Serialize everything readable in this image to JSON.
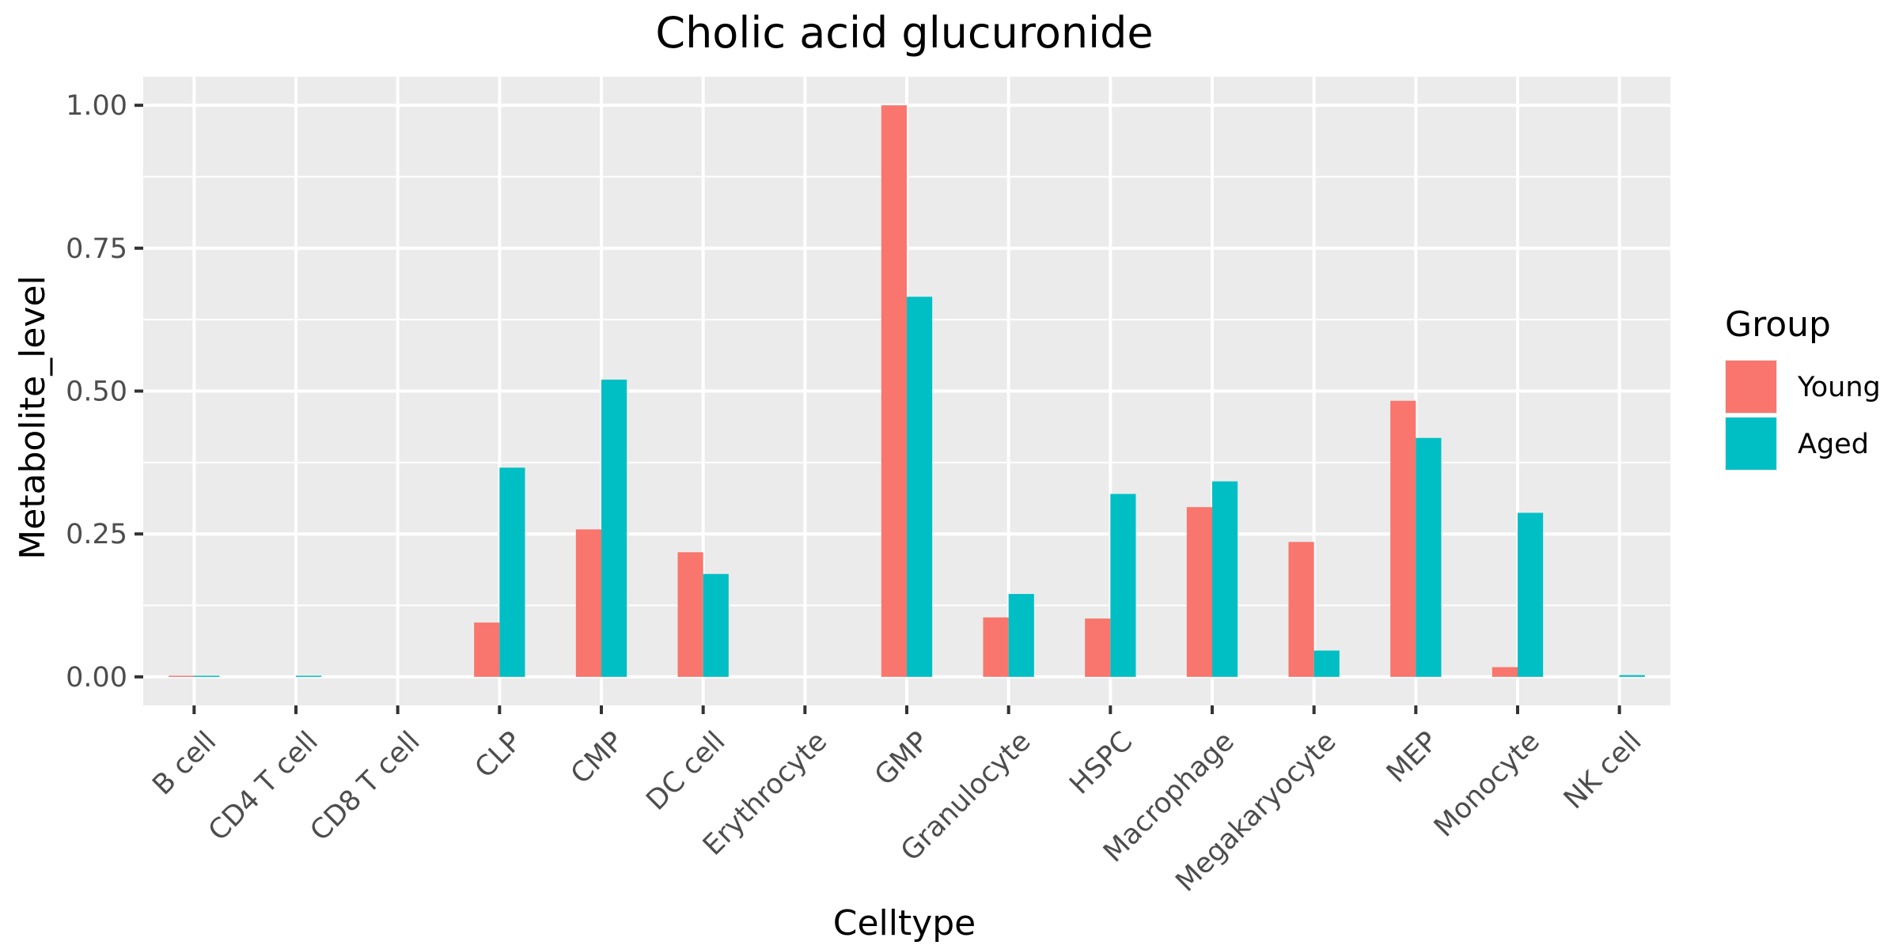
{
  "chart_data": {
    "type": "bar",
    "title": "Cholic acid glucuronide",
    "xlabel": "Celltype",
    "ylabel": "Metabolite_level",
    "categories": [
      "B cell",
      "CD4 T cell",
      "CD8 T cell",
      "CLP",
      "CMP",
      "DC cell",
      "Erythrocyte",
      "GMP",
      "Granulocyte",
      "HSPC",
      "Macrophage",
      "Megakaryocyte",
      "MEP",
      "Monocyte",
      "NK cell"
    ],
    "series": [
      {
        "name": "Young",
        "color": "#F8766D",
        "values": [
          0.002,
          0,
          0,
          0.095,
          0.258,
          0.218,
          0,
          1.0,
          0.104,
          0.102,
          0.297,
          0.236,
          0.483,
          0.017,
          0
        ]
      },
      {
        "name": "Aged",
        "color": "#00BFC4",
        "values": [
          0.002,
          0.002,
          0,
          0.366,
          0.52,
          0.18,
          0,
          0.665,
          0.145,
          0.32,
          0.342,
          0.046,
          0.418,
          0.287,
          0.003
        ]
      }
    ],
    "ylim": [
      -0.05,
      1.05
    ],
    "yticks": [
      0.0,
      0.25,
      0.5,
      0.75,
      1.0
    ],
    "ytick_labels": [
      "0.00",
      "0.25",
      "0.50",
      "0.75",
      "1.00"
    ],
    "legend": {
      "title": "Group",
      "position": "right"
    },
    "grid": true,
    "panel_color": "#EBEBEB",
    "grid_color": "#FFFFFF"
  }
}
